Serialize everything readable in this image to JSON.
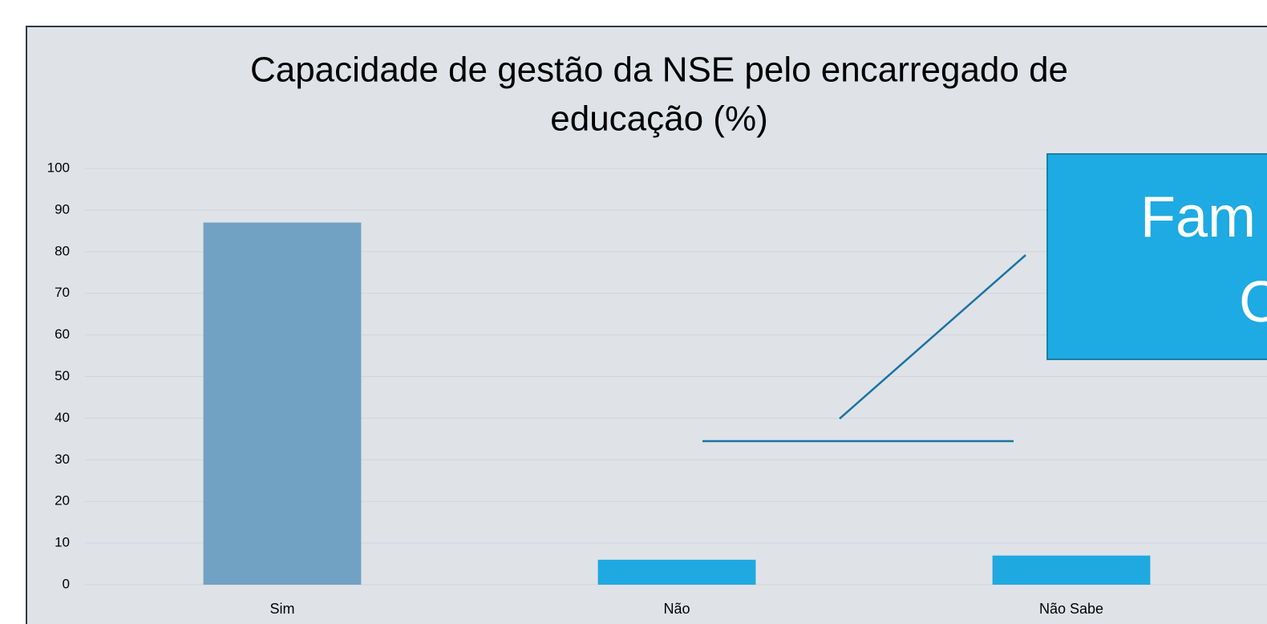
{
  "chart_data": {
    "type": "bar",
    "title": [
      "Capacidade de gestão da NSE pelo encarregado de",
      "educação (%)"
    ],
    "categories": [
      "Sim",
      "Não",
      "Não Sabe"
    ],
    "values": [
      87,
      6,
      7
    ],
    "colors": [
      "#71a2c3",
      "#1fa9e1",
      "#1fa9e1"
    ],
    "ylim": [
      0,
      100
    ],
    "yticks": [
      0,
      10,
      20,
      30,
      40,
      50,
      60,
      70,
      80,
      90,
      100
    ],
    "grid": true,
    "annotations": [
      "Fam",
      "C"
    ]
  }
}
